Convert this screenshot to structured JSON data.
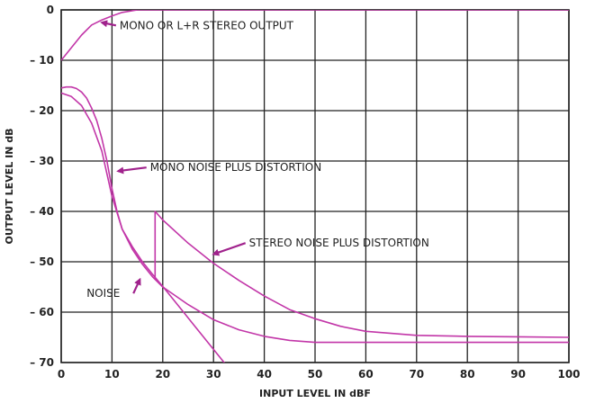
{
  "chart_data": {
    "type": "line",
    "xlabel": "INPUT LEVEL IN dBF",
    "ylabel": "OUTPUT LEVEL IN dB",
    "xlim": [
      0,
      100
    ],
    "ylim": [
      -70,
      0
    ],
    "xticks": [
      0,
      10,
      20,
      30,
      40,
      50,
      60,
      70,
      80,
      90,
      100
    ],
    "yticks": [
      0,
      -10,
      -20,
      -30,
      -40,
      -50,
      -60,
      -70
    ],
    "xtick_labels": [
      "0",
      "10",
      "20",
      "30",
      "40",
      "50",
      "60",
      "70",
      "80",
      "90",
      "100"
    ],
    "ytick_labels": [
      "0",
      "– 10",
      "– 20",
      "– 30",
      "– 40",
      "– 50",
      "– 60",
      "– 70"
    ],
    "grid": true,
    "colors": {
      "curve": "#c236a8",
      "arrow": "#a0228c",
      "grid": "#222222"
    },
    "series": [
      {
        "name": "MONO OR L+R STEREO OUTPUT",
        "x": [
          0,
          2,
          4,
          6,
          8,
          10,
          12,
          15,
          100
        ],
        "y": [
          -10,
          -7.5,
          -5,
          -3,
          -2,
          -1.2,
          -0.5,
          0,
          0
        ]
      },
      {
        "name": "MONO NOISE PLUS DISTORTION",
        "x": [
          0,
          1,
          2,
          3,
          4,
          5,
          6,
          7,
          8,
          9,
          10,
          11,
          12,
          14,
          16,
          18,
          20,
          25,
          30,
          35,
          40,
          45,
          50,
          60,
          70,
          80,
          90,
          100
        ],
        "y": [
          -15.5,
          -15.3,
          -15.3,
          -15.6,
          -16.3,
          -17.5,
          -19.5,
          -22,
          -25.5,
          -30,
          -35.5,
          -40,
          -43.5,
          -47.5,
          -50.5,
          -53,
          -55,
          -58.5,
          -61.5,
          -63.5,
          -64.8,
          -65.6,
          -66,
          -66,
          -66,
          -66,
          -66,
          -66
        ]
      },
      {
        "name": "STEREO NOISE PLUS DISTORTION",
        "x": [
          18.5,
          18.5,
          20,
          25,
          30,
          35,
          40,
          45,
          50,
          55,
          60,
          70,
          80,
          90,
          100
        ],
        "y": [
          -53.5,
          -40,
          -41.7,
          -46.3,
          -50.3,
          -53.7,
          -56.8,
          -59.5,
          -61.3,
          -62.8,
          -63.8,
          -64.6,
          -64.8,
          -64.9,
          -65
        ]
      },
      {
        "name": "NOISE",
        "x": [
          0,
          2,
          4,
          6,
          8,
          10,
          12,
          14,
          16,
          18,
          20,
          22,
          24,
          26,
          28,
          30,
          32,
          34
        ],
        "y": [
          -16.5,
          -17.2,
          -19,
          -22.5,
          -28,
          -37,
          -43.5,
          -47,
          -50,
          -52.5,
          -54.9,
          -57.4,
          -59.9,
          -62.4,
          -64.9,
          -67.4,
          -69.9,
          -72.4
        ]
      }
    ],
    "annotations": [
      {
        "text": "MONO OR L+R STEREO OUTPUT",
        "x": 11.5,
        "y": -3.8,
        "arrow_to": [
          8,
          -2.5
        ]
      },
      {
        "text": "MONO NOISE PLUS DISTORTION",
        "x": 17.5,
        "y": -32,
        "arrow_to": [
          11.2,
          -32
        ]
      },
      {
        "text": "STEREO NOISE PLUS DISTORTION",
        "x": 37,
        "y": -47,
        "arrow_to": [
          30,
          -48.5
        ]
      },
      {
        "text": "NOISE",
        "x": 5,
        "y": -57,
        "arrow_to": [
          15.5,
          -53.5
        ]
      }
    ]
  }
}
